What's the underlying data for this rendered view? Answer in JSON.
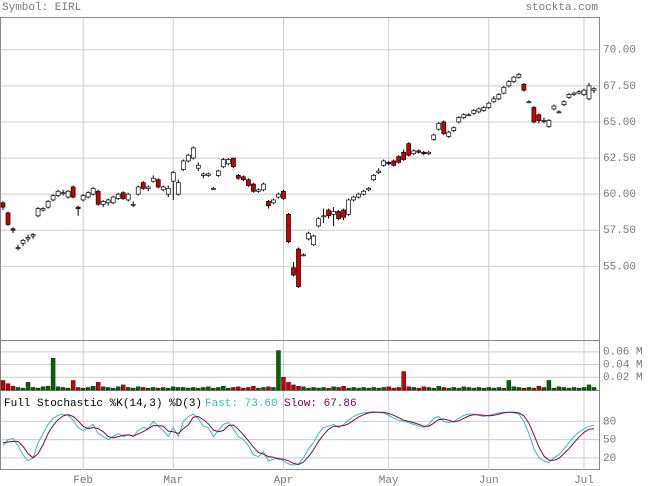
{
  "header": {
    "symbol": "Symbol: EIRL",
    "site": "stockta.com"
  },
  "chart_data": [
    {
      "type": "candlestick",
      "up_color": "#ffffff",
      "down_color": "#cc0000",
      "grid": true,
      "ylim": [
        49.9,
        72.2
      ],
      "yticks": [
        {
          "value": 55,
          "label": "55.00"
        },
        {
          "value": 57.5,
          "label": "57.50"
        },
        {
          "value": 60,
          "label": "60.00"
        },
        {
          "value": 62.5,
          "label": "62.50"
        },
        {
          "value": 65,
          "label": "65.00"
        },
        {
          "value": 67.5,
          "label": "67.50"
        },
        {
          "value": 70,
          "label": "70.00"
        }
      ],
      "open": [
        59.4,
        58.7,
        57.6,
        56.3,
        56.6,
        56.9,
        57.1,
        58.5,
        58.9,
        59.1,
        59.6,
        59.9,
        60.1,
        59.8,
        60.5,
        59.1,
        59.6,
        59.8,
        60.0,
        60.2,
        59.3,
        59.4,
        59.4,
        59.7,
        60.1,
        59.6,
        59.3,
        60.0,
        60.8,
        60.4,
        60.9,
        61.0,
        60.3,
        60.0,
        60.9,
        60.0,
        61.7,
        62.3,
        62.5,
        61.8,
        61.3,
        61.3,
        60.4,
        61.3,
        61.9,
        62.1,
        62.5,
        61.3,
        61.2,
        61.0,
        60.7,
        60.2,
        60.3,
        59.5,
        59.4,
        59.8,
        60.2,
        58.6,
        54.9,
        56.2,
        55.8,
        56.9,
        56.5,
        57.8,
        58.5,
        58.9,
        58.6,
        58.8,
        58.9,
        58.6,
        59.6,
        59.8,
        60.0,
        60.3,
        61.0,
        61.5,
        62.0,
        62.2,
        62.3,
        62.6,
        62.9,
        63.5,
        62.8,
        63.0,
        62.9,
        62.8,
        63.8,
        64.5,
        65.0,
        64.0,
        64.4,
        65.0,
        65.3,
        65.5,
        65.6,
        65.7,
        65.8,
        66.0,
        66.4,
        66.6,
        67.0,
        67.5,
        67.8,
        68.1,
        67.6,
        66.4,
        66.0,
        65.5,
        65.1,
        64.7,
        65.9,
        65.7,
        66.2,
        66.7,
        66.9,
        67.0,
        66.9,
        66.6,
        67.2
      ],
      "high": [
        59.5,
        58.8,
        57.7,
        56.5,
        56.9,
        57.2,
        57.3,
        59.1,
        59.1,
        59.6,
        60.0,
        60.3,
        60.3,
        60.3,
        60.6,
        59.2,
        60.0,
        60.2,
        60.5,
        60.3,
        59.6,
        59.7,
        59.9,
        60.1,
        60.2,
        60.1,
        59.5,
        60.6,
        60.9,
        60.6,
        61.3,
        61.1,
        60.6,
        60.6,
        61.6,
        61.0,
        62.4,
        62.8,
        63.3,
        62.2,
        61.5,
        61.5,
        60.5,
        61.7,
        62.5,
        62.5,
        62.5,
        61.4,
        61.3,
        61.1,
        60.8,
        60.4,
        60.8,
        59.6,
        59.7,
        60.1,
        60.3,
        58.7,
        55.3,
        56.3,
        55.9,
        57.4,
        57.2,
        58.4,
        59.0,
        59.0,
        59.1,
        58.9,
        59.0,
        59.7,
        59.9,
        60.1,
        60.3,
        60.5,
        61.4,
        61.8,
        62.4,
        62.3,
        62.4,
        62.7,
        63.1,
        63.6,
        63.1,
        63.1,
        63.0,
        63.0,
        64.2,
        65.0,
        65.1,
        64.4,
        64.7,
        65.4,
        65.6,
        65.6,
        65.9,
        66.0,
        66.1,
        66.4,
        66.8,
        67.0,
        67.5,
        67.9,
        68.2,
        68.4,
        67.7,
        66.5,
        66.1,
        65.6,
        65.3,
        65.2,
        66.2,
        65.8,
        66.5,
        67.0,
        67.1,
        67.2,
        67.3,
        67.7,
        67.4
      ],
      "low": [
        58.9,
        57.8,
        57.3,
        56.1,
        56.4,
        56.7,
        56.9,
        58.4,
        58.8,
        59.0,
        59.5,
        59.8,
        59.9,
        59.7,
        59.7,
        58.5,
        59.5,
        59.7,
        59.9,
        59.2,
        59.1,
        59.2,
        59.3,
        59.6,
        59.6,
        59.5,
        59.1,
        59.9,
        60.3,
        60.2,
        60.8,
        60.4,
        60.2,
        59.8,
        59.6,
        59.9,
        61.6,
        62.2,
        62.4,
        61.6,
        61.1,
        61.2,
        60.3,
        61.2,
        61.8,
        62.0,
        61.8,
        61.0,
        60.9,
        60.5,
        60.1,
        60.1,
        60.2,
        59.0,
        59.3,
        59.7,
        59.6,
        56.6,
        54.3,
        53.5,
        55.7,
        56.8,
        56.4,
        57.7,
        58.0,
        58.3,
        57.8,
        58.2,
        58.2,
        58.5,
        59.5,
        59.7,
        59.9,
        60.2,
        60.9,
        61.4,
        61.9,
        62.0,
        61.9,
        62.1,
        62.3,
        62.6,
        62.7,
        62.8,
        62.7,
        62.7,
        63.7,
        64.4,
        64.1,
        63.9,
        64.3,
        64.9,
        65.2,
        65.4,
        65.5,
        65.6,
        65.7,
        65.9,
        66.3,
        66.5,
        66.9,
        67.4,
        67.7,
        68.0,
        67.1,
        66.3,
        64.9,
        64.9,
        64.9,
        64.6,
        65.8,
        65.6,
        66.1,
        66.6,
        66.8,
        66.9,
        66.8,
        66.5,
        67.0
      ],
      "close": [
        59.1,
        57.9,
        57.5,
        56.3,
        56.8,
        57.0,
        57.2,
        59.0,
        59.0,
        59.5,
        59.9,
        60.2,
        60.1,
        60.2,
        59.8,
        59.0,
        59.9,
        60.1,
        60.4,
        59.3,
        59.5,
        59.6,
        59.8,
        60.0,
        59.7,
        60.0,
        59.3,
        60.5,
        60.4,
        60.5,
        61.1,
        60.5,
        60.5,
        60.4,
        61.5,
        60.8,
        62.3,
        62.7,
        63.2,
        62.0,
        61.4,
        61.4,
        60.4,
        61.6,
        62.4,
        62.4,
        61.9,
        61.1,
        61.0,
        60.6,
        60.2,
        60.3,
        60.7,
        59.2,
        59.6,
        60.0,
        59.7,
        56.7,
        54.4,
        53.6,
        55.8,
        57.3,
        57.1,
        58.3,
        58.5,
        58.5,
        58.8,
        58.3,
        58.4,
        59.6,
        59.8,
        60.0,
        60.2,
        60.4,
        61.3,
        61.6,
        62.3,
        62.1,
        62.0,
        62.2,
        62.4,
        62.7,
        63.0,
        62.9,
        62.8,
        62.9,
        64.1,
        64.9,
        64.2,
        64.3,
        64.6,
        65.3,
        65.5,
        65.5,
        65.8,
        65.9,
        66.0,
        66.3,
        66.6,
        66.9,
        67.4,
        67.8,
        68.1,
        68.3,
        67.2,
        66.4,
        65.0,
        65.1,
        65.1,
        65.1,
        66.1,
        65.7,
        66.4,
        66.9,
        67.0,
        67.1,
        67.2,
        67.5,
        67.3
      ]
    },
    {
      "type": "bar",
      "up_color": "#006600",
      "down_color": "#cc0000",
      "grid": true,
      "ylim": [
        0,
        0.077
      ],
      "yticks": [
        {
          "value": 0.02,
          "label": "0.02 M"
        },
        {
          "value": 0.04,
          "label": "0.04 M"
        },
        {
          "value": 0.06,
          "label": "0.06 M"
        }
      ],
      "values": [
        0.015,
        0.01,
        0.006,
        0.004,
        0.003,
        0.012,
        0.004,
        0.003,
        0.005,
        0.006,
        0.05,
        0.005,
        0.004,
        0.003,
        0.015,
        0.004,
        0.003,
        0.004,
        0.006,
        0.012,
        0.005,
        0.004,
        0.003,
        0.005,
        0.008,
        0.004,
        0.003,
        0.005,
        0.004,
        0.003,
        0.004,
        0.003,
        0.004,
        0.003,
        0.005,
        0.004,
        0.004,
        0.003,
        0.004,
        0.003,
        0.004,
        0.005,
        0.003,
        0.004,
        0.006,
        0.003,
        0.004,
        0.005,
        0.003,
        0.004,
        0.006,
        0.003,
        0.004,
        0.005,
        0.004,
        0.062,
        0.02,
        0.012,
        0.008,
        0.006,
        0.005,
        0.003,
        0.004,
        0.003,
        0.004,
        0.003,
        0.005,
        0.004,
        0.006,
        0.003,
        0.004,
        0.003,
        0.004,
        0.003,
        0.004,
        0.003,
        0.004,
        0.005,
        0.003,
        0.004,
        0.029,
        0.005,
        0.004,
        0.003,
        0.005,
        0.004,
        0.003,
        0.006,
        0.004,
        0.003,
        0.004,
        0.003,
        0.005,
        0.004,
        0.003,
        0.004,
        0.003,
        0.004,
        0.003,
        0.004,
        0.003,
        0.015,
        0.005,
        0.004,
        0.003,
        0.004,
        0.003,
        0.006,
        0.004,
        0.015,
        0.003,
        0.005,
        0.004,
        0.003,
        0.004,
        0.003,
        0.004,
        0.008,
        0.004
      ]
    },
    {
      "type": "line",
      "title": "Full Stochastic %K(14,3) %D(3)",
      "grid": true,
      "ylim": [
        0,
        130
      ],
      "yticks": [
        20,
        50,
        80
      ],
      "categories": [
        null,
        null,
        null,
        null,
        null,
        null,
        null,
        null,
        null,
        null,
        null,
        null,
        null,
        null,
        null,
        null,
        "Feb",
        null,
        null,
        null,
        null,
        null,
        null,
        null,
        null,
        null,
        null,
        null,
        null,
        null,
        null,
        null,
        null,
        null,
        "Mar",
        null,
        null,
        null,
        null,
        null,
        null,
        null,
        null,
        null,
        null,
        null,
        null,
        null,
        null,
        null,
        null,
        null,
        null,
        null,
        null,
        null,
        "Apr",
        null,
        null,
        null,
        null,
        null,
        null,
        null,
        null,
        null,
        null,
        null,
        null,
        null,
        null,
        null,
        null,
        null,
        null,
        null,
        null,
        "May",
        null,
        null,
        null,
        null,
        null,
        null,
        null,
        null,
        null,
        null,
        null,
        null,
        null,
        null,
        null,
        null,
        null,
        null,
        null,
        "Jun",
        null,
        null,
        null,
        null,
        null,
        null,
        null,
        null,
        null,
        null,
        null,
        null,
        null,
        null,
        null,
        null,
        null,
        null,
        "Jul",
        null,
        null
      ],
      "series": [
        {
          "name": "Fast: 73.60",
          "color": "#33bbbb",
          "values": [
            40,
            50,
            52,
            40,
            25,
            15,
            20,
            45,
            60,
            75,
            85,
            90,
            92,
            90,
            82,
            70,
            65,
            70,
            75,
            60,
            55,
            50,
            55,
            60,
            55,
            58,
            55,
            65,
            70,
            68,
            80,
            72,
            65,
            55,
            70,
            55,
            80,
            88,
            92,
            85,
            72,
            70,
            55,
            65,
            75,
            78,
            68,
            55,
            50,
            40,
            25,
            22,
            30,
            15,
            18,
            20,
            15,
            10,
            8,
            10,
            20,
            35,
            45,
            60,
            70,
            72,
            75,
            70,
            75,
            82,
            88,
            92,
            94,
            95,
            96,
            95,
            94,
            90,
            85,
            82,
            80,
            78,
            75,
            72,
            70,
            75,
            85,
            88,
            80,
            78,
            80,
            85,
            90,
            92,
            92,
            90,
            88,
            90,
            92,
            94,
            95,
            95,
            94,
            92,
            80,
            60,
            35,
            20,
            15,
            12,
            20,
            25,
            35,
            45,
            55,
            62,
            68,
            72,
            73.6
          ]
        },
        {
          "name": "Slow: 67.86",
          "color": "#880044",
          "values": [
            45,
            46,
            47,
            47,
            39,
            27,
            20,
            27,
            42,
            60,
            73,
            83,
            89,
            91,
            88,
            81,
            72,
            68,
            70,
            68,
            63,
            55,
            53,
            55,
            57,
            58,
            56,
            59,
            63,
            68,
            73,
            73,
            72,
            64,
            63,
            60,
            68,
            74,
            87,
            88,
            83,
            76,
            66,
            63,
            65,
            73,
            74,
            67,
            58,
            48,
            38,
            29,
            26,
            22,
            21,
            18,
            18,
            15,
            11,
            9,
            13,
            22,
            33,
            47,
            58,
            67,
            72,
            72,
            73,
            76,
            82,
            87,
            91,
            94,
            95,
            95,
            95,
            93,
            90,
            86,
            82,
            80,
            78,
            75,
            72,
            72,
            77,
            83,
            84,
            82,
            79,
            81,
            85,
            89,
            91,
            91,
            90,
            89,
            90,
            92,
            94,
            95,
            95,
            94,
            89,
            77,
            58,
            38,
            23,
            16,
            16,
            19,
            27,
            35,
            45,
            54,
            62,
            67,
            67.86
          ]
        }
      ]
    }
  ]
}
